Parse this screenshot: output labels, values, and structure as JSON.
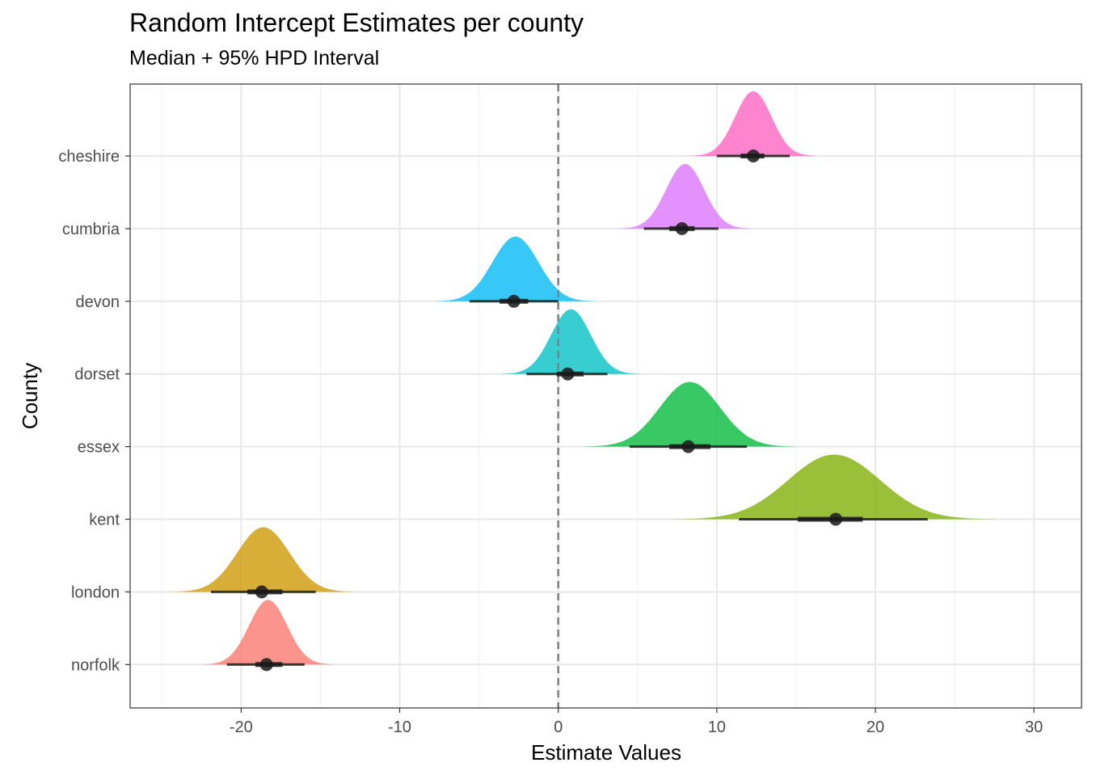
{
  "chart_data": {
    "type": "density-ridges",
    "title": "Random Intercept Estimates per county",
    "subtitle": "Median + 95% HPD Interval",
    "xlabel": "Estimate Values",
    "ylabel": "County",
    "xlim": [
      -27,
      33
    ],
    "x_ticks": [
      -20,
      -10,
      0,
      10,
      20,
      30
    ],
    "x_tick_labels": [
      "-20",
      "-10",
      "0",
      "10",
      "20",
      "30"
    ],
    "reference_line": 0,
    "grid": true,
    "series": [
      {
        "name": "cheshire",
        "color": "#FF61C3",
        "median": 12.3,
        "hpd50": [
          11.5,
          13.0
        ],
        "hpd95": [
          10.0,
          14.6
        ],
        "peak_x": 12.3,
        "spread": 1.15
      },
      {
        "name": "cumbria",
        "color": "#DB72FB",
        "median": 7.8,
        "hpd50": [
          7.0,
          8.6
        ],
        "hpd95": [
          5.4,
          10.1
        ],
        "peak_x": 8.0,
        "spread": 1.2
      },
      {
        "name": "devon",
        "color": "#00B9F6",
        "median": -2.8,
        "hpd50": [
          -3.7,
          -1.9
        ],
        "hpd95": [
          -5.6,
          0.0
        ],
        "peak_x": -2.7,
        "spread": 1.45
      },
      {
        "name": "dorset",
        "color": "#00BFC4",
        "median": 0.6,
        "hpd50": [
          -0.1,
          1.6
        ],
        "hpd95": [
          -2.0,
          3.1
        ],
        "peak_x": 0.8,
        "spread": 1.25
      },
      {
        "name": "essex",
        "color": "#00BA38",
        "median": 8.2,
        "hpd50": [
          7.0,
          9.6
        ],
        "hpd95": [
          4.5,
          11.9
        ],
        "peak_x": 8.3,
        "spread": 1.9
      },
      {
        "name": "kent",
        "color": "#7CAE00",
        "median": 17.5,
        "hpd50": [
          15.1,
          19.2
        ],
        "hpd95": [
          11.4,
          23.3
        ],
        "peak_x": 17.4,
        "spread": 2.9
      },
      {
        "name": "london",
        "color": "#CD9600",
        "median": -18.7,
        "hpd50": [
          -19.6,
          -17.4
        ],
        "hpd95": [
          -21.9,
          -15.3
        ],
        "peak_x": -18.6,
        "spread": 1.65
      },
      {
        "name": "norfolk",
        "color": "#F8766D",
        "median": -18.4,
        "hpd50": [
          -19.1,
          -17.4
        ],
        "hpd95": [
          -20.9,
          -16.0
        ],
        "peak_x": -18.3,
        "spread": 1.2
      }
    ]
  }
}
